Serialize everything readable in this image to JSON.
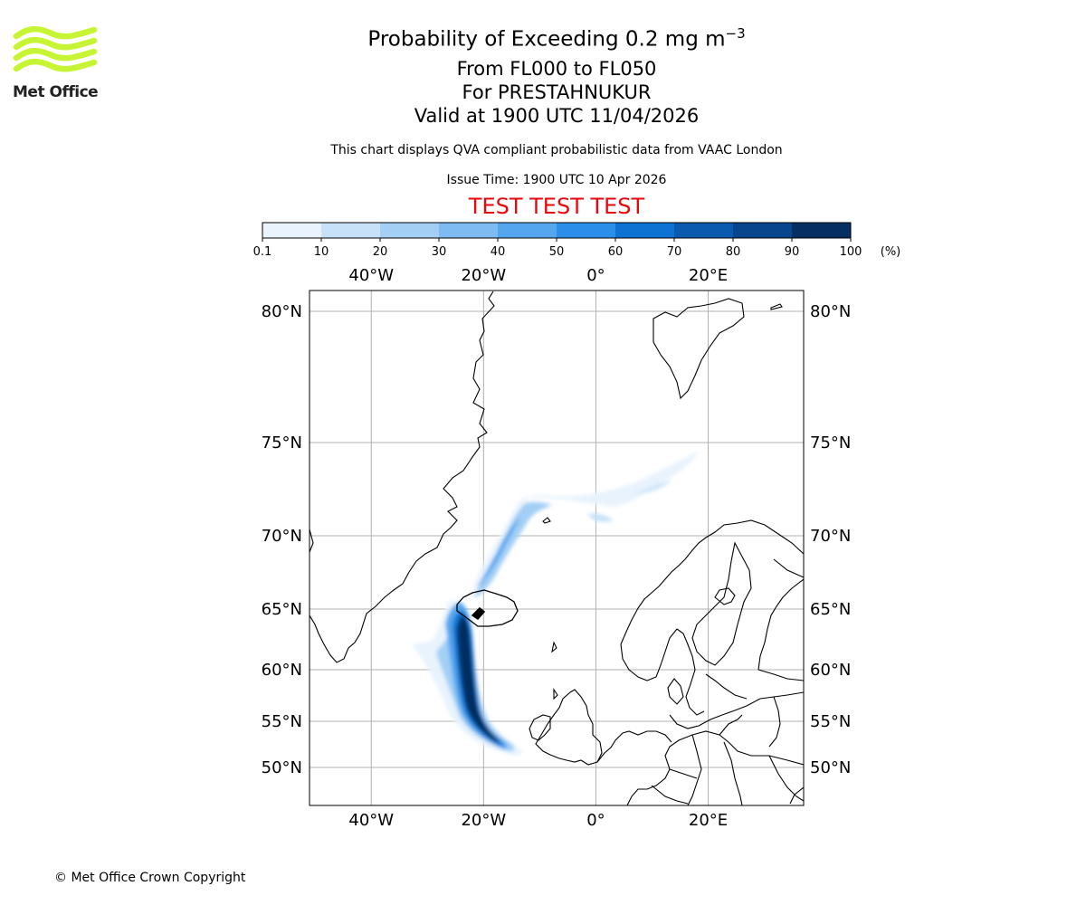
{
  "logo": {
    "name": "Met Office",
    "colors": {
      "waves": "#c8f533",
      "text": "#222222"
    }
  },
  "header": {
    "title_main": "Probability of Exceeding 0.2 mg m",
    "title_sup": "−3",
    "level_range": "From FL000 to FL050",
    "location": "For PRESTAHNUKUR",
    "valid_time": "Valid at 1900 UTC 11/04/2026",
    "description": "This chart displays QVA compliant probabilistic data from VAAC London",
    "issue_time": "Issue Time: 1900 UTC 10 Apr 2026",
    "test_banner": "TEST TEST TEST"
  },
  "colorbar": {
    "ticks": [
      "0.1",
      "10",
      "20",
      "30",
      "40",
      "50",
      "60",
      "70",
      "80",
      "90",
      "100"
    ],
    "unit": "(%)",
    "colors": [
      "#e8f3fd",
      "#c6e1f8",
      "#a3cff5",
      "#7dbbf2",
      "#54a6ef",
      "#2b8fea",
      "#0d72d1",
      "#0a5ab0",
      "#07458c",
      "#052f62"
    ]
  },
  "chart_data": {
    "type": "heatmap",
    "title": "Probability of Exceeding 0.2 mg m−3",
    "projection": "lat-lon",
    "lon_range": [
      -51,
      37
    ],
    "lat_range": [
      47,
      81
    ],
    "lon_ticks": [
      "40°W",
      "20°W",
      "0°",
      "20°E"
    ],
    "lat_ticks": [
      "80°N",
      "75°N",
      "70°N",
      "65°N",
      "60°N",
      "55°N",
      "50°N"
    ],
    "colorbar_levels": [
      0.1,
      10,
      20,
      30,
      40,
      50,
      60,
      70,
      80,
      90,
      100
    ],
    "unit": "%",
    "source_location": "PRESTAHNUKUR",
    "plume_axis": [
      {
        "lon": -22.0,
        "lat": 64.8,
        "prob": 95
      },
      {
        "lon": -22.8,
        "lat": 62.5,
        "prob": 95
      },
      {
        "lon": -23.0,
        "lat": 60.0,
        "prob": 95
      },
      {
        "lon": -22.3,
        "lat": 57.0,
        "prob": 90
      },
      {
        "lon": -19.5,
        "lat": 53.5,
        "prob": 85
      },
      {
        "lon": -16.0,
        "lat": 52.5,
        "prob": 40
      }
    ],
    "plume_north_axis": [
      {
        "lon": -20.0,
        "lat": 65.5,
        "prob": 45
      },
      {
        "lon": -17.0,
        "lat": 68.5,
        "prob": 40
      },
      {
        "lon": -14.0,
        "lat": 71.5,
        "prob": 25
      },
      {
        "lon": -2.0,
        "lat": 71.0,
        "prob": 5
      },
      {
        "lon": 10.0,
        "lat": 72.5,
        "prob": 5
      }
    ]
  },
  "footer": {
    "copyright": "© Met Office Crown Copyright"
  }
}
